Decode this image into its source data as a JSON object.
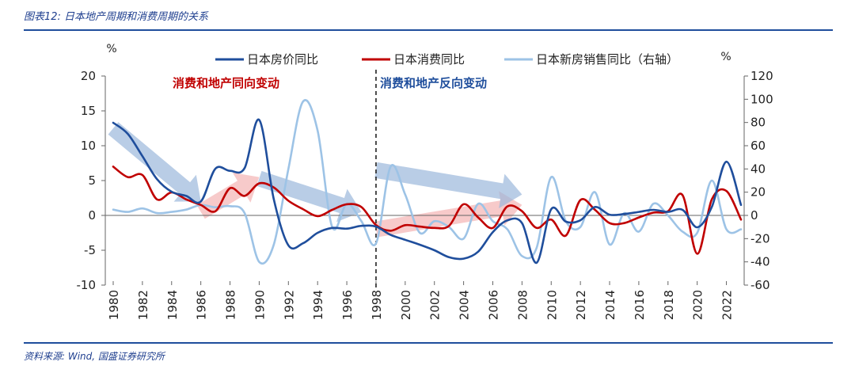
{
  "figure_title": "图表12: 日本地产周期和消费周期的关系",
  "source": "资料来源: Wind, 国盛证券研究所",
  "colors": {
    "house_price": "#1f4e9c",
    "consumption": "#c00000",
    "new_home_sales": "#9dc3e6",
    "arrow_blue": "#9bb8dc",
    "arrow_red": "#f3b3b3",
    "title_rule": "#1f4e9c",
    "annotation_red": "#c00000",
    "annotation_blue": "#1f4e9c"
  },
  "chart_data": {
    "type": "line",
    "x": [
      1980,
      1981,
      1982,
      1983,
      1984,
      1985,
      1986,
      1987,
      1988,
      1989,
      1990,
      1991,
      1992,
      1993,
      1994,
      1995,
      1996,
      1997,
      1998,
      1999,
      2000,
      2001,
      2002,
      2003,
      2004,
      2005,
      2006,
      2007,
      2008,
      2009,
      2010,
      2011,
      2012,
      2013,
      2014,
      2015,
      2016,
      2017,
      2018,
      2019,
      2020,
      2021,
      2022,
      2023
    ],
    "x_ticks": [
      "1980",
      "1982",
      "1984",
      "1986",
      "1988",
      "1990",
      "1992",
      "1994",
      "1996",
      "1998",
      "2000",
      "2002",
      "2004",
      "2006",
      "2008",
      "2010",
      "2012",
      "2014",
      "2016",
      "2018",
      "2020",
      "2022"
    ],
    "left_axis": {
      "unit": "%",
      "ylim": [
        -10,
        20
      ],
      "ticks": [
        "20",
        "15",
        "10",
        "5",
        "0",
        "-5",
        "-10"
      ]
    },
    "right_axis": {
      "unit": "%",
      "ylim": [
        -60,
        120
      ],
      "ticks": [
        "120",
        "100",
        "80",
        "60",
        "40",
        "20",
        "0",
        "-20",
        "-40",
        "-60"
      ]
    },
    "series": [
      {
        "name": "日本房价同比",
        "axis": "left",
        "values": [
          13.3,
          11.7,
          8.5,
          5.2,
          3.4,
          2.8,
          2.0,
          6.7,
          6.4,
          6.8,
          13.7,
          2.3,
          -4.3,
          -4.0,
          -2.5,
          -1.8,
          -1.9,
          -1.5,
          -1.6,
          -2.8,
          -3.5,
          -4.2,
          -5.0,
          -6.0,
          -6.2,
          -5.2,
          -2.4,
          -0.7,
          -1.1,
          -6.8,
          0.9,
          -0.9,
          -0.7,
          1.2,
          0.1,
          0.2,
          0.5,
          0.8,
          0.5,
          0.8,
          -1.7,
          1.2,
          7.7,
          1.5
        ]
      },
      {
        "name": "日本消费同比",
        "axis": "left",
        "values": [
          7.0,
          5.5,
          5.8,
          2.3,
          3.3,
          2.3,
          1.5,
          0.6,
          3.9,
          2.8,
          4.6,
          4.0,
          2.1,
          0.9,
          -0.1,
          0.8,
          1.6,
          1.2,
          -1.4,
          -2.2,
          -1.4,
          -1.6,
          -1.8,
          -1.5,
          1.6,
          -0.3,
          -1.8,
          1.3,
          0.6,
          -1.8,
          -0.6,
          -2.9,
          2.2,
          0.8,
          -1.1,
          -1.1,
          -0.3,
          0.4,
          0.6,
          2.9,
          -5.5,
          2.3,
          3.5,
          -0.6
        ]
      },
      {
        "name": "日本新房销售同比（右轴）",
        "axis": "right",
        "values": [
          5,
          3,
          6,
          2,
          3,
          5,
          9,
          7,
          8,
          2,
          -40,
          -25,
          40,
          98,
          73,
          -10,
          10,
          -5,
          -24,
          42,
          18,
          -15,
          -5,
          -10,
          -20,
          10,
          -5,
          -12,
          -35,
          -28,
          33,
          -5,
          -10,
          20,
          -25,
          2,
          -14,
          10,
          0,
          -14,
          -15,
          30,
          -12,
          -12
        ]
      }
    ],
    "annotations": [
      {
        "text": "消费和地产同向变动",
        "color": "red"
      },
      {
        "text": "消费和地产反向变动",
        "color": "blue"
      }
    ],
    "divider_x": 1998,
    "trend_arrows": [
      {
        "color": "blue",
        "from": [
          1980,
          12.5
        ],
        "to": [
          1986,
          2.0
        ]
      },
      {
        "color": "red",
        "from": [
          1986,
          0.5
        ],
        "to": [
          1990,
          5.5
        ]
      },
      {
        "color": "blue",
        "from": [
          1990,
          5.3
        ],
        "to": [
          1997,
          0.5
        ]
      },
      {
        "color": "red",
        "from": [
          1998,
          -2.0
        ],
        "to": [
          2008,
          1.5
        ]
      },
      {
        "color": "blue",
        "from": [
          1998,
          6.5
        ],
        "to": [
          2008,
          3.0
        ]
      }
    ],
    "legend_position": "top"
  }
}
